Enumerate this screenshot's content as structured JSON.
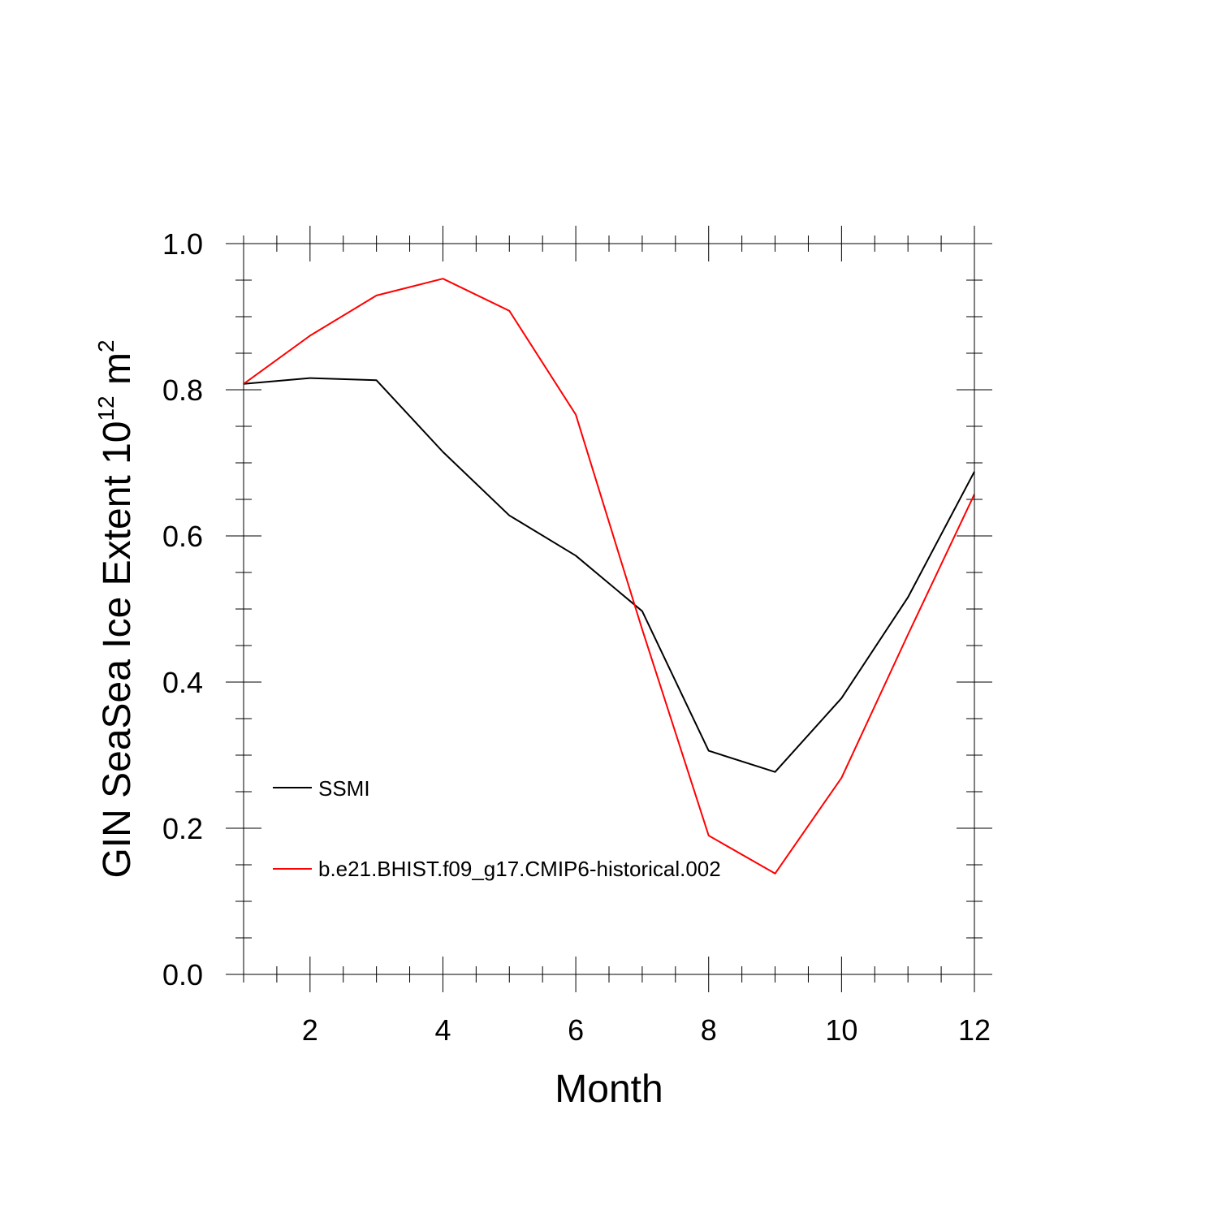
{
  "chart_data": {
    "type": "line",
    "title": "",
    "xlabel": "Month",
    "ylabel": "GIN SeaSea Ice Extent 10",
    "ylabel_exponent": "12",
    "ylabel_unit": " m",
    "ylabel_unit_exponent": "2",
    "xlim": [
      1,
      12
    ],
    "ylim": [
      0.0,
      1.0
    ],
    "x_major_ticks": [
      2,
      4,
      6,
      8,
      10,
      12
    ],
    "x_minor_step": 0.5,
    "y_major_ticks": [
      0.0,
      0.2,
      0.4,
      0.6,
      0.8,
      1.0
    ],
    "y_minor_step": 0.05,
    "y_tick_labels": [
      "0.0",
      "0.2",
      "0.4",
      "0.6",
      "0.8",
      "1.0"
    ],
    "x_tick_labels": [
      "2",
      "4",
      "6",
      "8",
      "10",
      "12"
    ],
    "x": [
      1,
      2,
      3,
      4,
      5,
      6,
      7,
      8,
      9,
      10,
      11,
      12
    ],
    "series": [
      {
        "name": "SSMI",
        "color": "#000000",
        "values": [
          0.808,
          0.816,
          0.813,
          0.715,
          0.628,
          0.573,
          0.497,
          0.306,
          0.277,
          0.378,
          0.516,
          0.688
        ]
      },
      {
        "name": "b.e21.BHIST.f09_g17.CMIP6-historical.002",
        "color": "#ff0000",
        "values": [
          0.808,
          0.874,
          0.929,
          0.952,
          0.908,
          0.766,
          0.472,
          0.19,
          0.138,
          0.269,
          0.465,
          0.657
        ]
      }
    ],
    "legend_position": "lower-left inside"
  }
}
